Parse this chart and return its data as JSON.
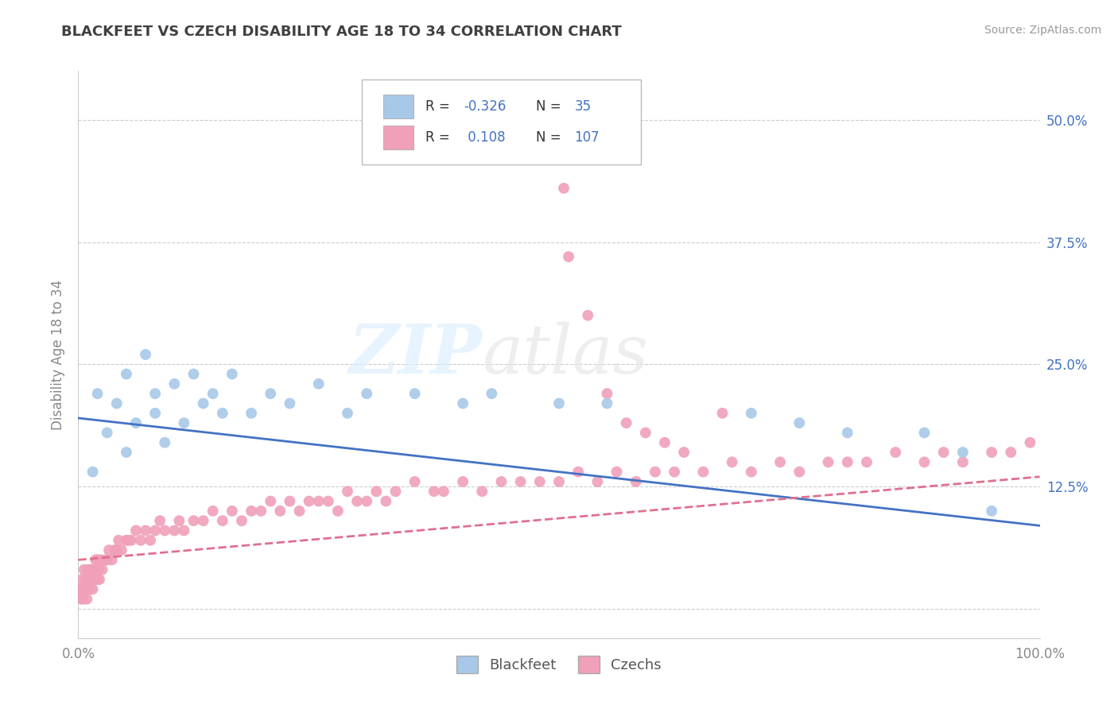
{
  "title": "BLACKFEET VS CZECH DISABILITY AGE 18 TO 34 CORRELATION CHART",
  "source": "Source: ZipAtlas.com",
  "ylabel": "Disability Age 18 to 34",
  "watermark_zip": "ZIP",
  "watermark_atlas": "atlas",
  "xlim": [
    0.0,
    100.0
  ],
  "ylim": [
    -3.0,
    55.0
  ],
  "yticks": [
    0.0,
    12.5,
    25.0,
    37.5,
    50.0
  ],
  "xticks": [
    0.0,
    25.0,
    50.0,
    75.0,
    100.0
  ],
  "blue_R": -0.326,
  "blue_N": 35,
  "pink_R": 0.108,
  "pink_N": 107,
  "blue_color": "#A8C8E8",
  "pink_color": "#F0A0B8",
  "blue_line_color": "#4472C4",
  "pink_line_color": "#E07090",
  "background_color": "#FFFFFF",
  "grid_color": "#CCCCCC",
  "title_color": "#404040",
  "legend_color": "#4472C4",
  "axis_color": "#888888",
  "blue_x": [
    1.5,
    2,
    3,
    4,
    5,
    5,
    6,
    7,
    8,
    8,
    9,
    10,
    11,
    12,
    13,
    14,
    15,
    16,
    18,
    20,
    22,
    25,
    28,
    30,
    35,
    40,
    43,
    50,
    55,
    70,
    75,
    80,
    88,
    92,
    95
  ],
  "blue_y": [
    14,
    22,
    18,
    21,
    24,
    16,
    19,
    26,
    22,
    20,
    17,
    23,
    19,
    24,
    21,
    22,
    20,
    24,
    20,
    22,
    21,
    23,
    20,
    22,
    22,
    21,
    22,
    21,
    21,
    20,
    19,
    18,
    18,
    16,
    10
  ],
  "pink_x": [
    0.2,
    0.3,
    0.4,
    0.5,
    0.5,
    0.6,
    0.7,
    0.8,
    0.9,
    1.0,
    1.0,
    1.1,
    1.2,
    1.3,
    1.4,
    1.5,
    1.6,
    1.7,
    1.8,
    2.0,
    2.0,
    2.1,
    2.2,
    2.3,
    2.5,
    2.8,
    3.0,
    3.2,
    3.5,
    3.8,
    4.0,
    4.2,
    4.5,
    5.0,
    5.2,
    5.5,
    6.0,
    6.5,
    7.0,
    7.5,
    8.0,
    8.5,
    9.0,
    10.0,
    10.5,
    11.0,
    12.0,
    13.0,
    14.0,
    15.0,
    16.0,
    17.0,
    18.0,
    19.0,
    20.0,
    21.0,
    22.0,
    23.0,
    24.0,
    25.0,
    26.0,
    27.0,
    28.0,
    29.0,
    30.0,
    31.0,
    32.0,
    33.0,
    35.0,
    37.0,
    38.0,
    40.0,
    42.0,
    44.0,
    46.0,
    48.0,
    50.0,
    52.0,
    54.0,
    56.0,
    58.0,
    60.0,
    62.0,
    65.0,
    68.0,
    70.0,
    73.0,
    75.0,
    78.0,
    80.0,
    82.0,
    85.0,
    88.0,
    90.0,
    92.0,
    95.0,
    97.0,
    99.0,
    50.5,
    51.0,
    53.0,
    55.0,
    57.0,
    59.0,
    61.0,
    63.0,
    67.0
  ],
  "pink_y": [
    2,
    1,
    3,
    2,
    1,
    4,
    2,
    3,
    1,
    2,
    4,
    3,
    2,
    4,
    3,
    2,
    4,
    3,
    5,
    3,
    5,
    4,
    3,
    5,
    4,
    5,
    5,
    6,
    5,
    6,
    6,
    7,
    6,
    7,
    7,
    7,
    8,
    7,
    8,
    7,
    8,
    9,
    8,
    8,
    9,
    8,
    9,
    9,
    10,
    9,
    10,
    9,
    10,
    10,
    11,
    10,
    11,
    10,
    11,
    11,
    11,
    10,
    12,
    11,
    11,
    12,
    11,
    12,
    13,
    12,
    12,
    13,
    12,
    13,
    13,
    13,
    13,
    14,
    13,
    14,
    13,
    14,
    14,
    14,
    15,
    14,
    15,
    14,
    15,
    15,
    15,
    16,
    15,
    16,
    15,
    16,
    16,
    17,
    43,
    36,
    30,
    22,
    19,
    18,
    17,
    16,
    20
  ],
  "blue_trend_x0": 0,
  "blue_trend_y0": 19.5,
  "blue_trend_x1": 100,
  "blue_trend_y1": 8.5,
  "pink_trend_x0": 0,
  "pink_trend_y0": 5.0,
  "pink_trend_x1": 100,
  "pink_trend_y1": 13.5
}
